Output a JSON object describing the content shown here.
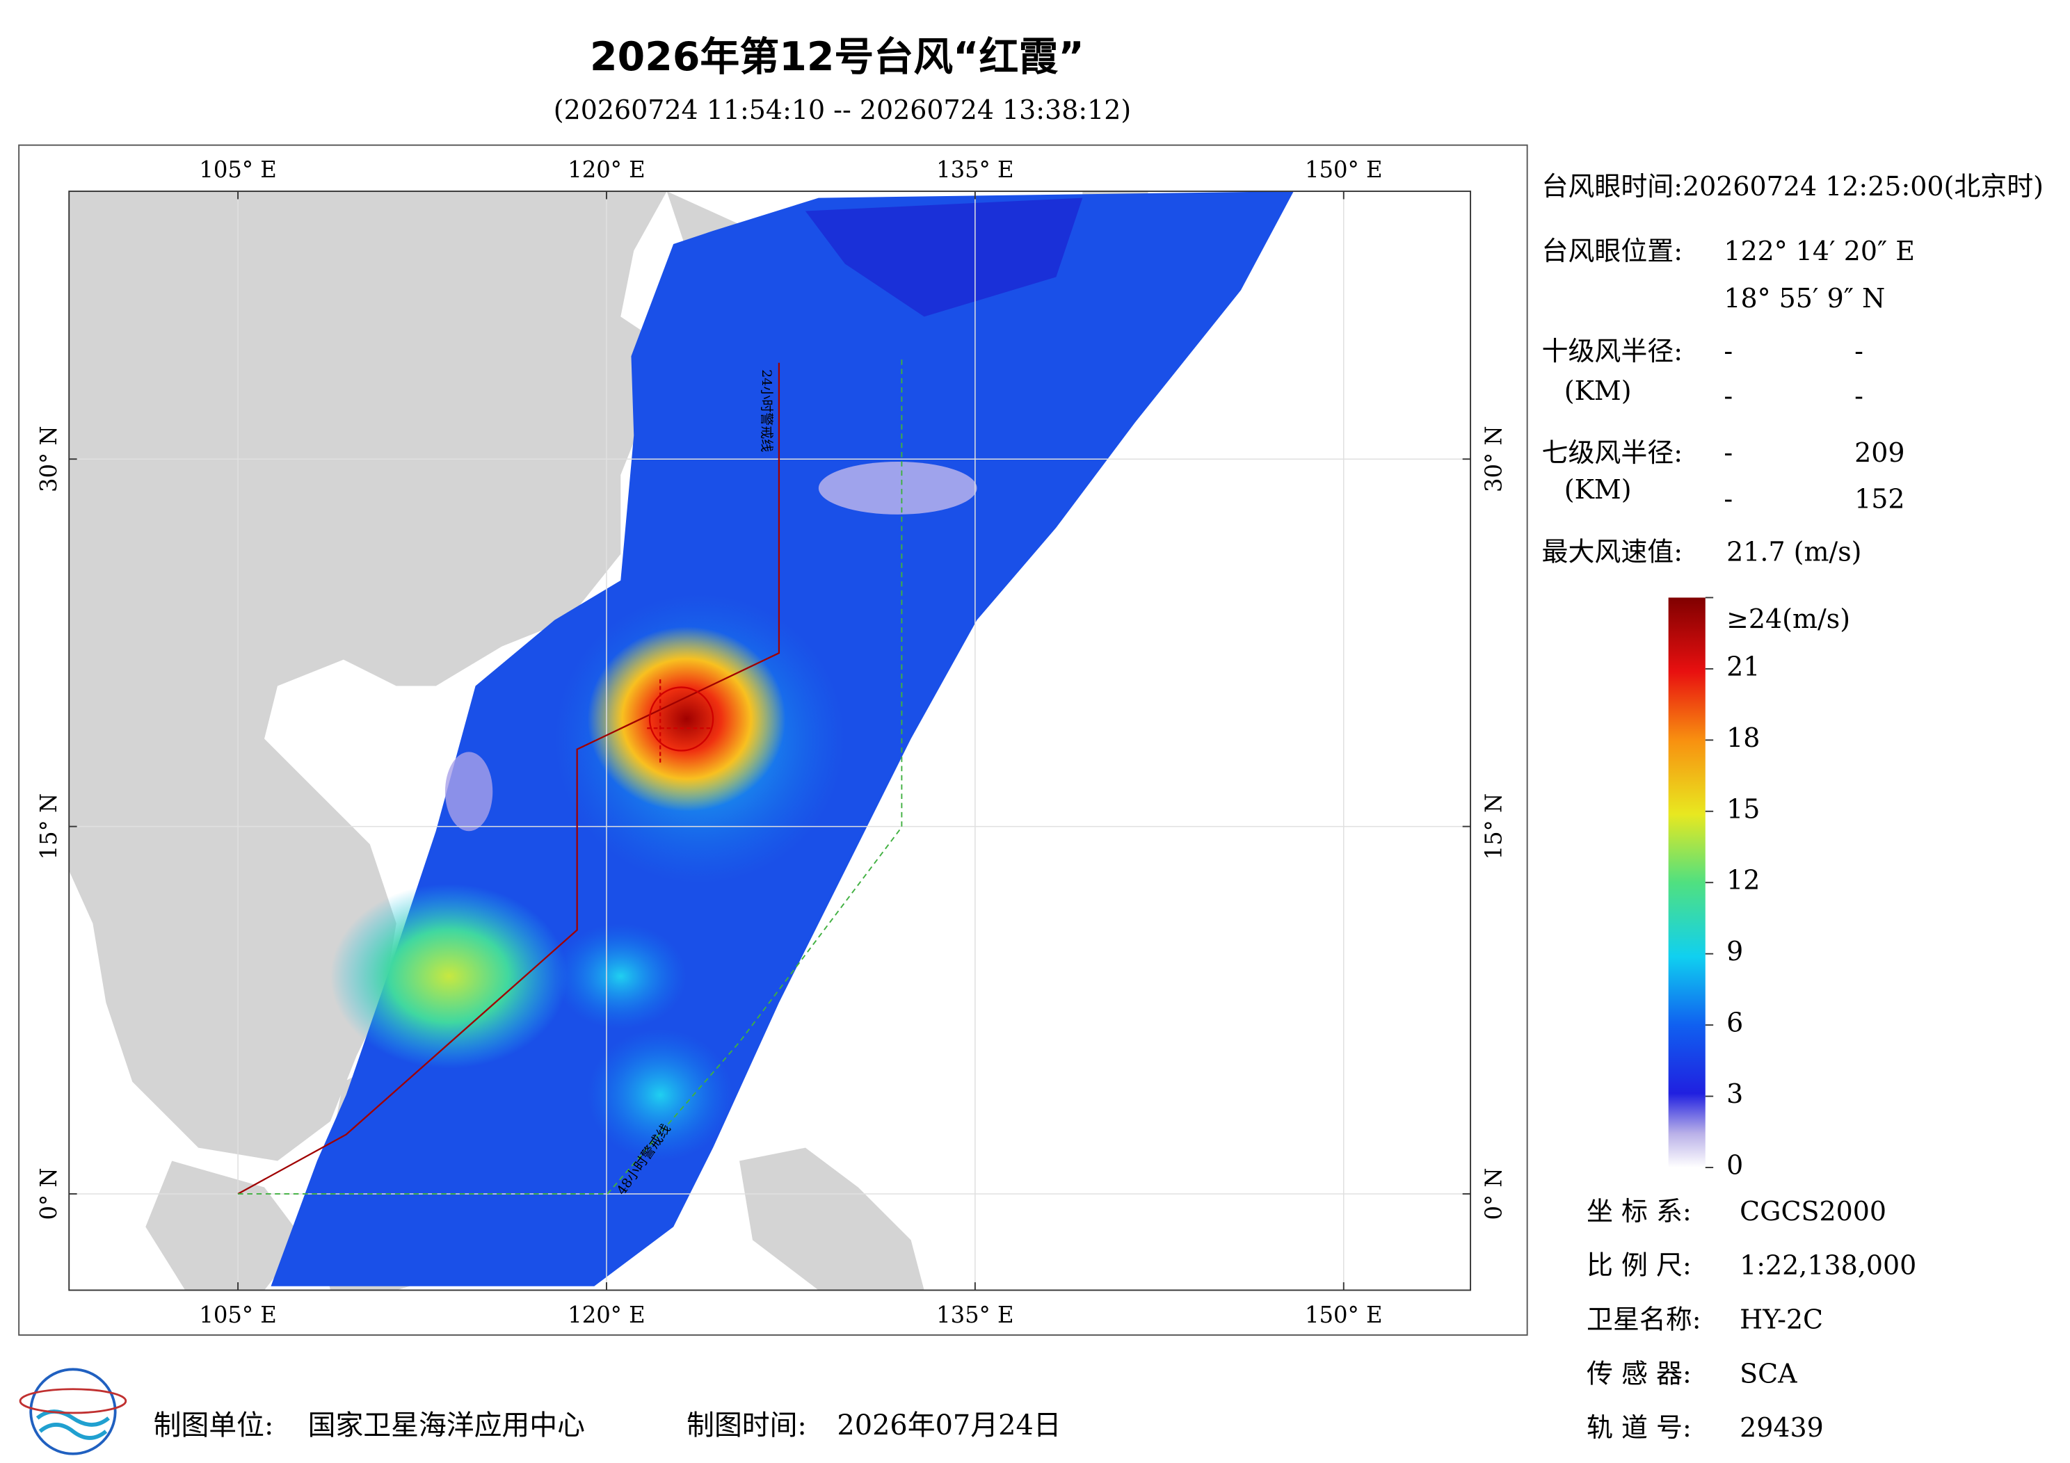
{
  "header": {
    "title": "2026年第12号台风“红霞”",
    "subtitle": "(20260724 11:54:10 -- 20260724 13:38:12)"
  },
  "map": {
    "lon_ticks": [
      {
        "value": 105,
        "label": "105° E"
      },
      {
        "value": 120,
        "label": "120° E"
      },
      {
        "value": 135,
        "label": "135° E"
      },
      {
        "value": 150,
        "label": "150° E"
      }
    ],
    "lat_ticks": [
      {
        "value": 0,
        "label": "0° N"
      },
      {
        "value": 15,
        "label": "15° N"
      },
      {
        "value": 30,
        "label": "30° N"
      }
    ],
    "annotations": [
      "24小时警戒线",
      "48小时警戒线"
    ]
  },
  "info": {
    "eye_time": "台风眼时间:20260724 12:25:00(北京时)",
    "eye_position_label": "台风眼位置:",
    "eye_lon": "122° 14′ 20″ E",
    "eye_lat": "18° 55′ 9″ N",
    "r10_label": "十级风半径:",
    "r10_unit": "(KM)",
    "r10_values": [
      [
        "-",
        "-"
      ],
      [
        "-",
        "-"
      ]
    ],
    "r7_label": "七级风半径:",
    "r7_unit": "(KM)",
    "r7_values": [
      [
        "-",
        209
      ],
      [
        "-",
        152
      ]
    ],
    "max_wind_label": "最大风速值:",
    "max_wind": "21.7  (m/s)"
  },
  "colorbar": {
    "ticks": [
      0,
      3,
      6,
      9,
      12,
      15,
      18,
      21,
      {
        "value": 24,
        "label": "≥24(m/s)"
      }
    ]
  },
  "meta": [
    {
      "label": "坐 标 系:",
      "value": "CGCS2000"
    },
    {
      "label": "比 例 尺:",
      "value": "1:22,138,000"
    },
    {
      "label": "卫星名称:",
      "value": "HY-2C"
    },
    {
      "label": "传 感 器:",
      "value": "SCA"
    },
    {
      "label": "轨 道 号:",
      "value": "29439"
    }
  ],
  "footer": {
    "unit_label": "制图单位:",
    "unit": "国家卫星海洋应用中心",
    "time_label": "制图时间:",
    "time": "2026年07月24日"
  }
}
